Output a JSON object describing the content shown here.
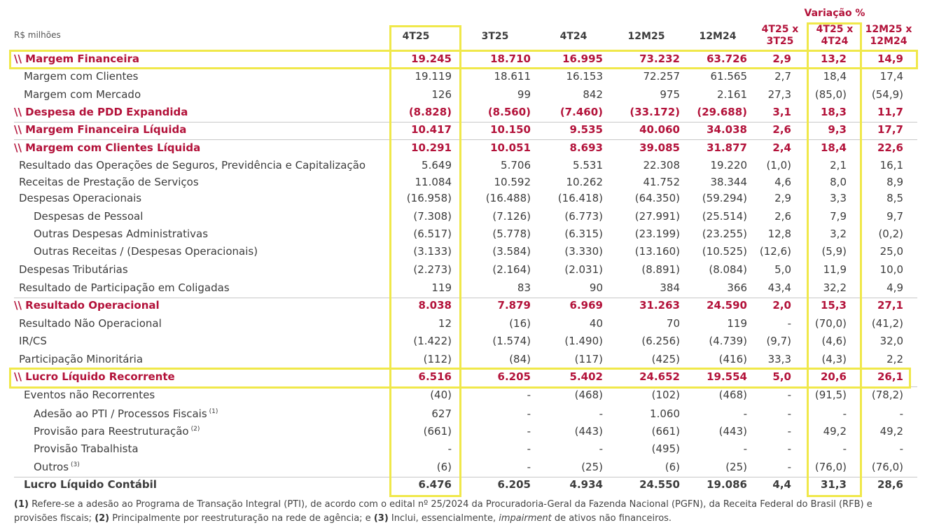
{
  "header": {
    "unit": "R$ milhões",
    "variation_title": "Variação %",
    "columns": [
      "4T25",
      "3T25",
      "4T24",
      "12M25",
      "12M24"
    ],
    "var_columns": [
      {
        "line1": "4T25 x",
        "line2": "3T25"
      },
      {
        "line1": "4T25 x",
        "line2": "4T24"
      },
      {
        "line1": "12M25 x",
        "line2": "12M24"
      }
    ]
  },
  "rows": [
    {
      "label": "\\\\ Margem Financeira",
      "values": [
        "19.245",
        "18.710",
        "16.995",
        "73.232",
        "63.726",
        "2,9",
        "13,2",
        "14,9"
      ]
    },
    {
      "label": "Margem com Clientes",
      "values": [
        "19.119",
        "18.611",
        "16.153",
        "72.257",
        "61.565",
        "2,7",
        "18,4",
        "17,4"
      ]
    },
    {
      "label": "Margem com Mercado",
      "values": [
        "126",
        "99",
        "842",
        "975",
        "2.161",
        "27,3",
        "(85,0)",
        "(54,9)"
      ]
    },
    {
      "label": "\\\\ Despesa de PDD Expandida",
      "values": [
        "(8.828)",
        "(8.560)",
        "(7.460)",
        "(33.172)",
        "(29.688)",
        "3,1",
        "18,3",
        "11,7"
      ]
    },
    {
      "label": "\\\\ Margem Financeira Líquida",
      "values": [
        "10.417",
        "10.150",
        "9.535",
        "40.060",
        "34.038",
        "2,6",
        "9,3",
        "17,7"
      ]
    },
    {
      "label": "\\\\ Margem com Clientes Líquida",
      "values": [
        "10.291",
        "10.051",
        "8.693",
        "39.085",
        "31.877",
        "2,4",
        "18,4",
        "22,6"
      ]
    },
    {
      "label": "Resultado das Operações de Seguros, Previdência e Capitalização",
      "values": [
        "5.649",
        "5.706",
        "5.531",
        "22.308",
        "19.220",
        "(1,0)",
        "2,1",
        "16,1"
      ]
    },
    {
      "label": "Receitas de Prestação de Serviços",
      "values": [
        "11.084",
        "10.592",
        "10.262",
        "41.752",
        "38.344",
        "4,6",
        "8,0",
        "8,9"
      ]
    },
    {
      "label": "Despesas Operacionais",
      "values": [
        "(16.958)",
        "(16.488)",
        "(16.418)",
        "(64.350)",
        "(59.294)",
        "2,9",
        "3,3",
        "8,5"
      ]
    },
    {
      "label": "Despesas de Pessoal",
      "values": [
        "(7.308)",
        "(7.126)",
        "(6.773)",
        "(27.991)",
        "(25.514)",
        "2,6",
        "7,9",
        "9,7"
      ]
    },
    {
      "label": "Outras Despesas Administrativas",
      "values": [
        "(6.517)",
        "(5.778)",
        "(6.315)",
        "(23.199)",
        "(23.255)",
        "12,8",
        "3,2",
        "(0,2)"
      ]
    },
    {
      "label": "Outras Receitas / (Despesas Operacionais)",
      "values": [
        "(3.133)",
        "(3.584)",
        "(3.330)",
        "(13.160)",
        "(10.525)",
        "(12,6)",
        "(5,9)",
        "25,0"
      ]
    },
    {
      "label": "Despesas Tributárias",
      "values": [
        "(2.273)",
        "(2.164)",
        "(2.031)",
        "(8.891)",
        "(8.084)",
        "5,0",
        "11,9",
        "10,0"
      ]
    },
    {
      "label": "Resultado de Participação em Coligadas",
      "values": [
        "119",
        "83",
        "90",
        "384",
        "366",
        "43,4",
        "32,2",
        "4,9"
      ]
    },
    {
      "label": "\\\\ Resultado Operacional",
      "values": [
        "8.038",
        "7.879",
        "6.969",
        "31.263",
        "24.590",
        "2,0",
        "15,3",
        "27,1"
      ]
    },
    {
      "label": "Resultado Não Operacional",
      "values": [
        "12",
        "(16)",
        "40",
        "70",
        "119",
        "-",
        "(70,0)",
        "(41,2)"
      ]
    },
    {
      "label": "IR/CS",
      "values": [
        "(1.422)",
        "(1.574)",
        "(1.490)",
        "(6.256)",
        "(4.739)",
        "(9,7)",
        "(4,6)",
        "32,0"
      ]
    },
    {
      "label": "Participação Minoritária",
      "values": [
        "(112)",
        "(84)",
        "(117)",
        "(425)",
        "(416)",
        "33,3",
        "(4,3)",
        "2,2"
      ]
    },
    {
      "label": "\\\\ Lucro Líquido Recorrente",
      "values": [
        "6.516",
        "6.205",
        "5.402",
        "24.652",
        "19.554",
        "5,0",
        "20,6",
        "26,1"
      ]
    },
    {
      "label": "Eventos não Recorrentes",
      "values": [
        "(40)",
        "-",
        "(468)",
        "(102)",
        "(468)",
        "-",
        "(91,5)",
        "(78,2)"
      ]
    },
    {
      "label": "Adesão ao PTI / Processos Fiscais",
      "note": "(1)",
      "values": [
        "627",
        "-",
        "-",
        "1.060",
        "-",
        "-",
        "-",
        "-"
      ]
    },
    {
      "label": "Provisão para Reestruturação",
      "note": "(2)",
      "values": [
        "(661)",
        "-",
        "(443)",
        "(661)",
        "(443)",
        "-",
        "49,2",
        "49,2"
      ]
    },
    {
      "label": "Provisão Trabalhista",
      "values": [
        "-",
        "-",
        "-",
        "(495)",
        "-",
        "-",
        "-",
        "-"
      ]
    },
    {
      "label": "Outros",
      "note": "(3)",
      "values": [
        "(6)",
        "-",
        "(25)",
        "(6)",
        "(25)",
        "-",
        "(76,0)",
        "(76,0)"
      ]
    },
    {
      "label": "Lucro Líquido Contábil",
      "values": [
        "6.476",
        "6.205",
        "4.934",
        "24.550",
        "19.086",
        "4,4",
        "31,3",
        "28,6"
      ]
    }
  ],
  "footnotes": {
    "n1_tag": "(1)",
    "n1_text": "Refere-se a adesão ao Programa de Transação Integral (PTI), de acordo com o edital nº 25/2024 da Procuradoria-Geral da Fazenda Nacional (PGFN), da Receita Federal do Brasil (RFB) e provisões fiscais;",
    "n2_tag": "(2)",
    "n2_text": "Principalmente por reestruturação na rede de agência; e",
    "n3_tag": "(3)",
    "n3_text_a": "Inclui, essencialmente,",
    "n3_italic": "impairment",
    "n3_text_b": "de ativos não financeiros."
  },
  "colors": {
    "accent_red": "#b3123a",
    "highlight_yellow": "#f0e84a",
    "text": "#3c3c3c"
  }
}
